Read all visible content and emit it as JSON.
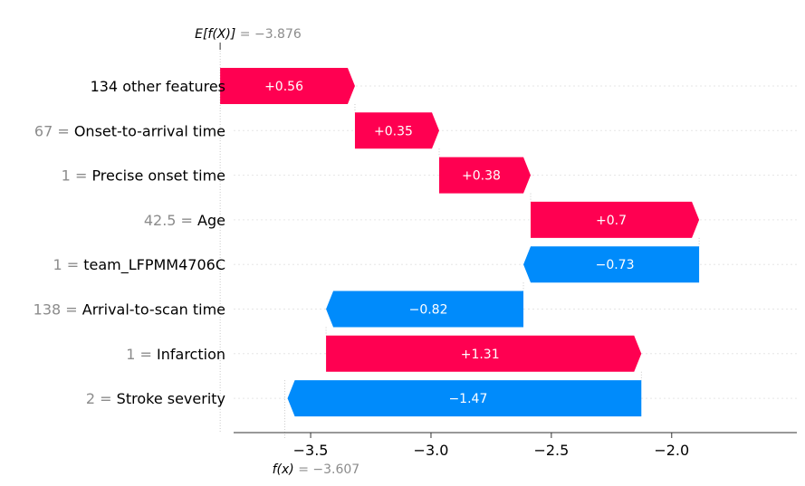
{
  "chart_data": {
    "type": "waterfall",
    "base_value": {
      "label_prefix": "E[f(X)]",
      "eq": " = ",
      "value_text": "−3.876",
      "value": -3.876
    },
    "output_value": {
      "label_prefix": "f(x)",
      "eq": " = ",
      "value_text": "−3.607",
      "value": -3.607
    },
    "colors": {
      "positive": "#ff0051",
      "negative": "#008bfb",
      "value_text": "#8c8c8c"
    },
    "xlim": [
      -3.82,
      -1.48
    ],
    "x_ticks": [
      {
        "value": -3.5,
        "label": "−3.5"
      },
      {
        "value": -3.0,
        "label": "−3.0"
      },
      {
        "value": -2.5,
        "label": "−2.5"
      },
      {
        "value": -2.0,
        "label": "−2.0"
      }
    ],
    "features": [
      {
        "value": "",
        "eq": "",
        "name": "134 other features",
        "contribution": 0.56,
        "label": "+0.56"
      },
      {
        "value": "67",
        "eq": " = ",
        "name": "Onset-to-arrival time",
        "contribution": 0.35,
        "label": "+0.35"
      },
      {
        "value": "1",
        "eq": " = ",
        "name": "Precise onset time",
        "contribution": 0.38,
        "label": "+0.38"
      },
      {
        "value": "42.5",
        "eq": " = ",
        "name": "Age",
        "contribution": 0.7,
        "label": "+0.7"
      },
      {
        "value": "1",
        "eq": " = ",
        "name": "team_LFPMM4706C",
        "contribution": -0.73,
        "label": "−0.73"
      },
      {
        "value": "138",
        "eq": " = ",
        "name": "Arrival-to-scan time",
        "contribution": -0.82,
        "label": "−0.82"
      },
      {
        "value": "1",
        "eq": " = ",
        "name": "Infarction",
        "contribution": 1.31,
        "label": "+1.31"
      },
      {
        "value": "2",
        "eq": " = ",
        "name": "Stroke severity",
        "contribution": -1.47,
        "label": "−1.47"
      }
    ]
  }
}
